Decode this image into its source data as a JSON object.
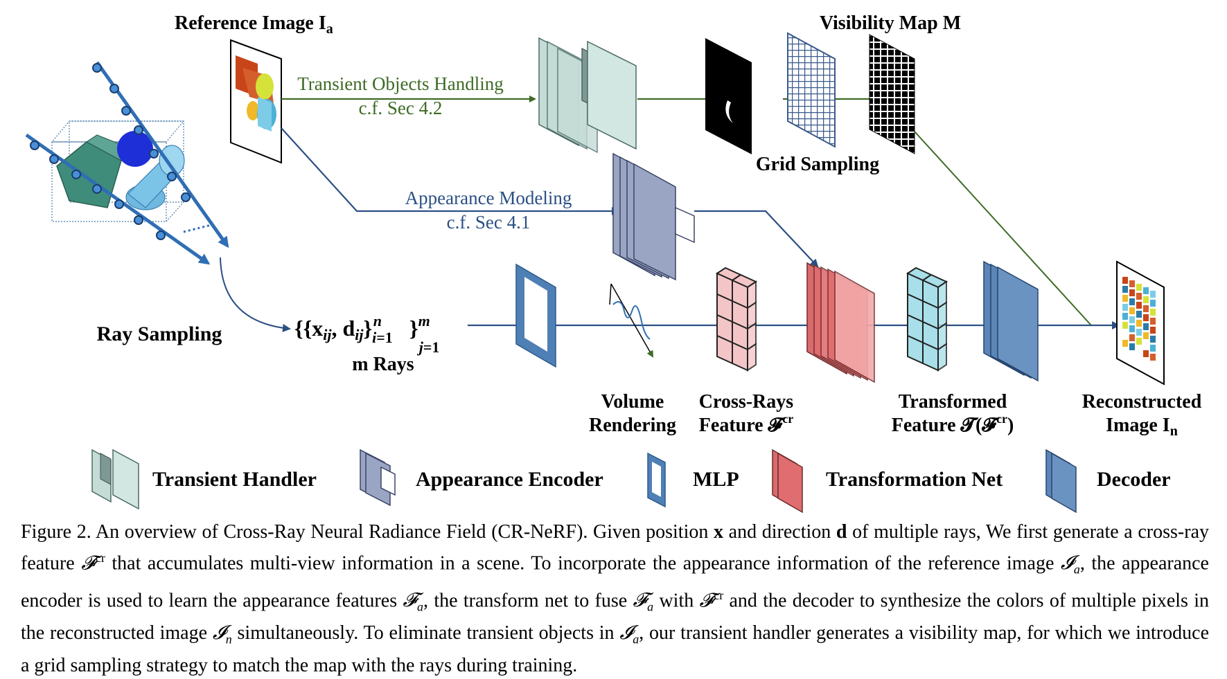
{
  "labels": {
    "reference_image": "Reference Image I",
    "reference_image_sub": "a",
    "visibility_map": "Visibility Map M",
    "transient_handling": "Transient Objects Handling",
    "transient_ref": "c.f. Sec 4.2",
    "appearance_modeling": "Appearance Modeling",
    "appearance_ref": "c.f. Sec 4.1",
    "grid_sampling": "Grid Sampling",
    "ray_sampling": "Ray Sampling",
    "m_rays": "m Rays",
    "volume_rendering_1": "Volume",
    "volume_rendering_2": "Rendering",
    "cross_rays_1": "Cross-Rays",
    "cross_rays_2": "Feature 𝓕",
    "cross_rays_sup": "cr",
    "transformed_1": "Transformed",
    "transformed_2": "Feature 𝓣(𝓕",
    "transformed_sup": "cr",
    "transformed_close": ")",
    "reconstructed_1": "Reconstructed",
    "reconstructed_2": "Image I",
    "reconstructed_sub": "n"
  },
  "legend": [
    {
      "label": "Transient Handler",
      "icon": "transient-handler-icon"
    },
    {
      "label": "Appearance Encoder",
      "icon": "appearance-encoder-icon"
    },
    {
      "label": "MLP",
      "icon": "mlp-icon"
    },
    {
      "label": "Transformation Net",
      "icon": "transformation-net-icon"
    },
    {
      "label": "Decoder",
      "icon": "decoder-icon"
    }
  ],
  "caption": {
    "p1": "Figure 2. An overview of Cross-Ray Neural Radiance Field (CR-NeRF). Given position ",
    "x": "x",
    "p2": " and direction ",
    "d": "d",
    "p3": " of multiple rays, We first generate a cross-ray feature ",
    "p4": " that accumulates multi-view information in a scene. To incorporate the appearance information of the reference image ",
    "p5": ", the appearance encoder is used to learn the appearance features ",
    "p6": ", the transform net to fuse ",
    "p7": " with ",
    "p8": " and the decoder to synthesize the colors of multiple pixels in the reconstructed image ",
    "p9": " simultaneously. To eliminate transient objects in ",
    "p10": ", our transient handler generates a visibility map, for which we introduce a grid sampling strategy to match the map with the rays during training."
  },
  "colors": {
    "green_arrow": "#3d6b24",
    "blue_arrow": "#2b4f84",
    "transient": "#c5dcd6",
    "appearance": "#9aa5c4",
    "mlp": "#4e80b5",
    "transformation": "#e06d6f",
    "decoder": "#5b86b8",
    "grid_cyan": "#a8dfe9",
    "grid_pink": "#f4c5c7",
    "ray_blue": "#2f6eb5"
  }
}
